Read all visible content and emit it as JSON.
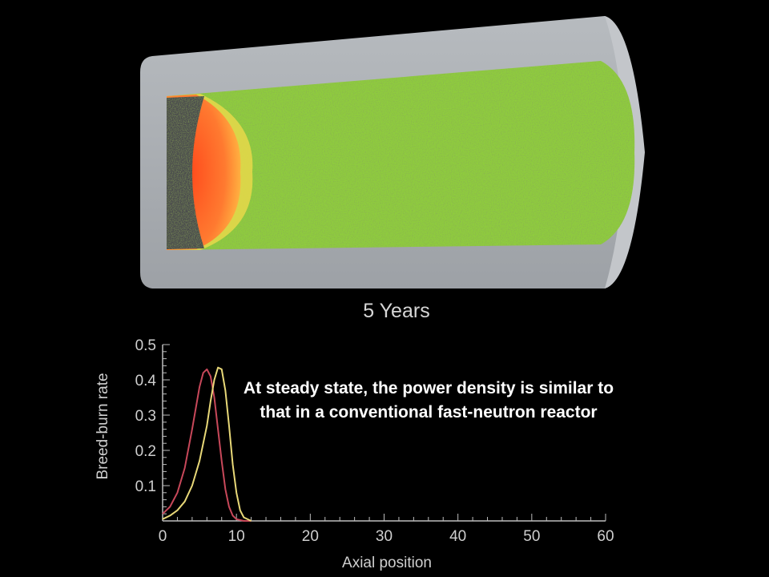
{
  "caption": "5 Years",
  "annotation": "At steady state, the power density is similar to that in a conventional fast-neutron reactor",
  "colors": {
    "background": "#000000",
    "cladding": "#a9adb2",
    "fuel_fresh": "#8fcd3e",
    "burn_front": "#ff6a2a",
    "burnt_fuel": "#4a4a4e",
    "series_1": "#c8485a",
    "series_2": "#e8d878"
  },
  "chart_data": {
    "type": "line",
    "title": "",
    "xlabel": "Axial position",
    "ylabel": "Breed-burn rate",
    "xlim": [
      0,
      60
    ],
    "ylim": [
      0,
      0.5
    ],
    "xticks": [
      "0",
      "10",
      "20",
      "30",
      "40",
      "50",
      "60"
    ],
    "yticks": [
      "0.1",
      "0.2",
      "0.3",
      "0.4",
      "0.5"
    ],
    "grid": false,
    "series": [
      {
        "color": "#c8485a",
        "x": [
          0,
          1,
          2,
          3,
          4,
          5,
          5.5,
          6,
          6.5,
          7,
          7.5,
          8,
          8.5,
          9,
          9.5,
          10,
          11,
          12
        ],
        "values": [
          0.02,
          0.04,
          0.08,
          0.15,
          0.26,
          0.38,
          0.42,
          0.43,
          0.41,
          0.35,
          0.26,
          0.17,
          0.09,
          0.04,
          0.015,
          0.005,
          0,
          0
        ]
      },
      {
        "color": "#e8d878",
        "x": [
          0,
          1,
          2,
          3,
          4,
          5,
          6,
          6.5,
          7,
          7.5,
          8,
          8.5,
          9,
          9.5,
          10,
          10.5,
          11,
          12
        ],
        "values": [
          0.005,
          0.015,
          0.03,
          0.055,
          0.1,
          0.17,
          0.27,
          0.34,
          0.4,
          0.435,
          0.43,
          0.37,
          0.27,
          0.16,
          0.08,
          0.03,
          0.01,
          0
        ]
      }
    ]
  }
}
